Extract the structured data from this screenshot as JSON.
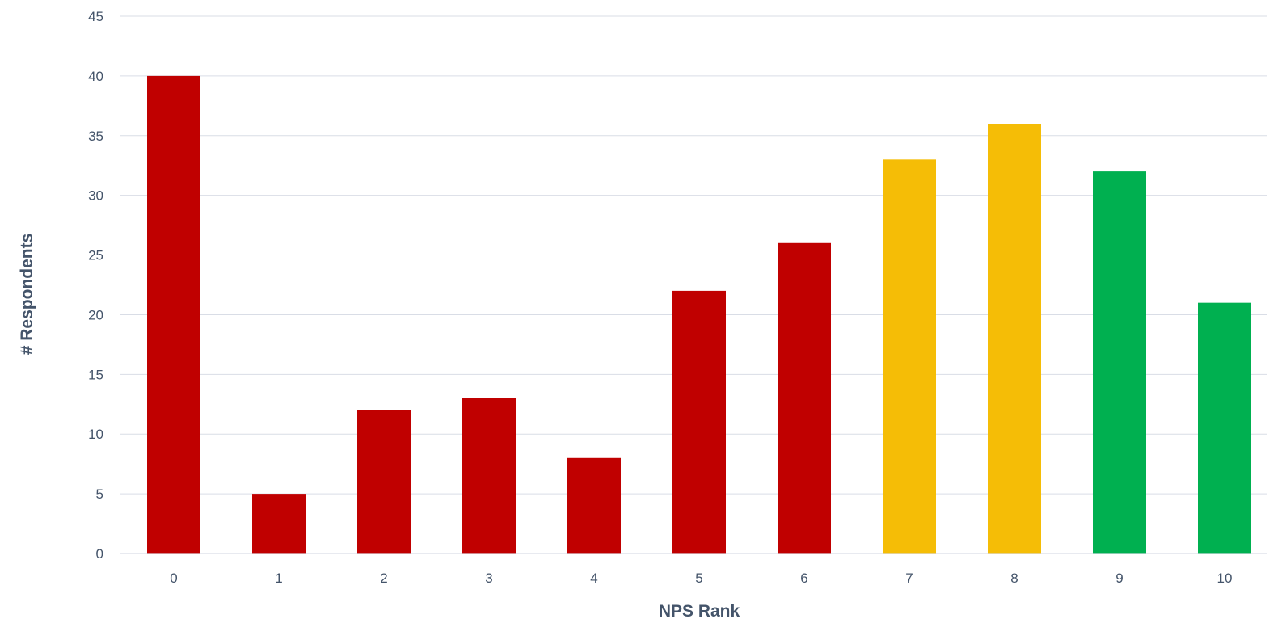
{
  "chart_data": {
    "type": "bar",
    "title": "",
    "xlabel": "NPS Rank",
    "ylabel": "# Respondents",
    "categories": [
      "0",
      "1",
      "2",
      "3",
      "4",
      "5",
      "6",
      "7",
      "8",
      "9",
      "10"
    ],
    "values": [
      40,
      5,
      12,
      13,
      8,
      22,
      26,
      33,
      36,
      32,
      21
    ],
    "bar_colors": [
      "#c00000",
      "#c00000",
      "#c00000",
      "#c00000",
      "#c00000",
      "#c00000",
      "#c00000",
      "#f5bd06",
      "#f5bd06",
      "#00b050",
      "#00b050"
    ],
    "ylim": [
      0,
      45
    ],
    "yticks": [
      "0",
      "5",
      "10",
      "15",
      "20",
      "25",
      "30",
      "35",
      "40",
      "45"
    ],
    "grid": true,
    "legend": "none"
  }
}
